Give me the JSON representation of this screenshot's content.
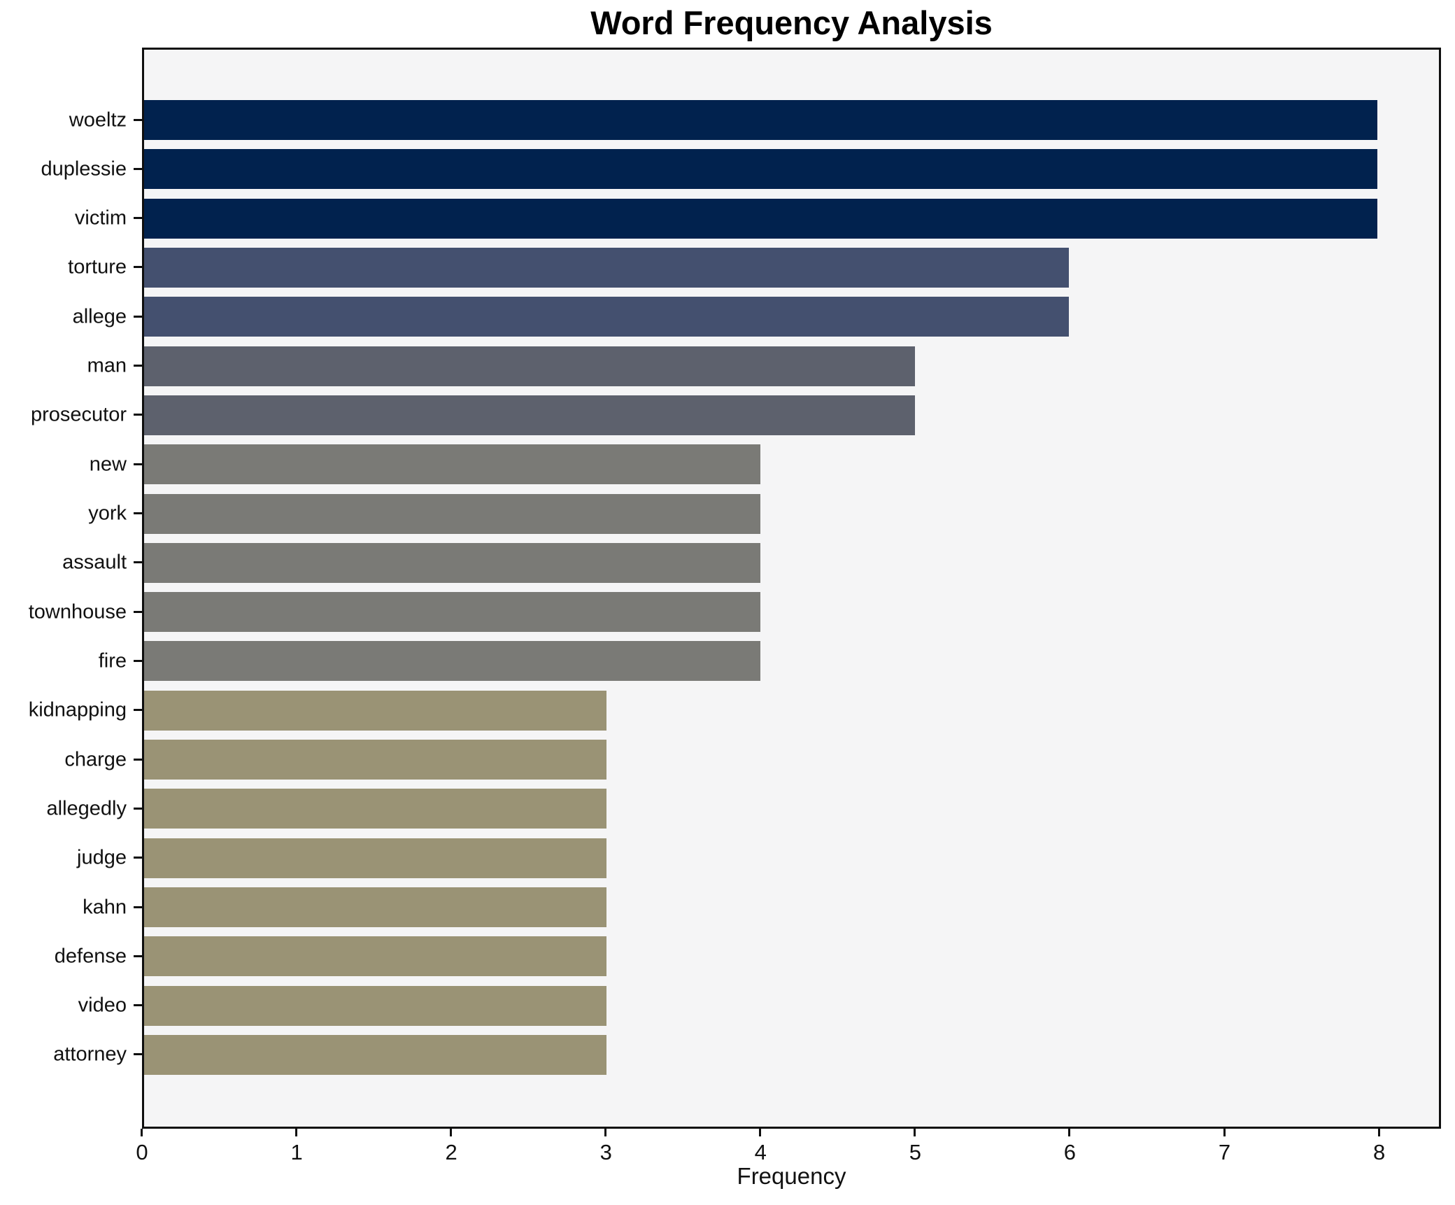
{
  "chart_data": {
    "type": "bar",
    "orientation": "horizontal",
    "title": "Word Frequency Analysis",
    "xlabel": "Frequency",
    "ylabel": "",
    "categories": [
      "woeltz",
      "duplessie",
      "victim",
      "torture",
      "allege",
      "man",
      "prosecutor",
      "new",
      "york",
      "assault",
      "townhouse",
      "fire",
      "kidnapping",
      "charge",
      "allegedly",
      "judge",
      "kahn",
      "defense",
      "video",
      "attorney"
    ],
    "values": [
      8,
      8,
      8,
      6,
      6,
      5,
      5,
      4,
      4,
      4,
      4,
      4,
      3,
      3,
      3,
      3,
      3,
      3,
      3,
      3
    ],
    "bar_colors": [
      "#01224e",
      "#01224e",
      "#01224e",
      "#44506f",
      "#44506f",
      "#5d616d",
      "#5d616d",
      "#7a7a76",
      "#7a7a76",
      "#7a7a76",
      "#7a7a76",
      "#7a7a76",
      "#9a9375",
      "#9a9375",
      "#9a9375",
      "#9a9375",
      "#9a9375",
      "#9a9375",
      "#9a9375",
      "#9a9375"
    ],
    "value_color_map": {
      "8": "#01224e",
      "6": "#44506f",
      "5": "#5d616d",
      "4": "#7a7a76",
      "3": "#9a9375"
    },
    "xlim": [
      0,
      8.4
    ],
    "xticks": [
      0,
      1,
      2,
      3,
      4,
      5,
      6,
      7,
      8
    ],
    "grid": false,
    "legend": null,
    "plot_background": "#f5f5f6",
    "spine_color": "#0f0f0f"
  }
}
